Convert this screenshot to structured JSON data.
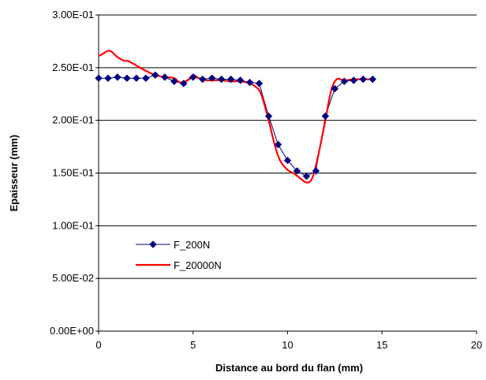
{
  "chart_data": {
    "type": "line",
    "title": "",
    "xlabel": "Distance au bord du flan (mm)",
    "ylabel": "Epaisseur (mm)",
    "xlim": [
      0,
      20
    ],
    "ylim": [
      0,
      0.3
    ],
    "x_ticks": [
      0,
      5,
      10,
      15,
      20
    ],
    "x_tick_labels": [
      "0",
      "5",
      "10",
      "15",
      "20"
    ],
    "y_ticks": [
      0,
      0.05,
      0.1,
      0.15,
      0.2,
      0.25,
      0.3
    ],
    "y_tick_labels": [
      "0.00E+00",
      "5.00E-02",
      "1.00E-01",
      "1.50E-01",
      "2.00E-01",
      "2.50E-01",
      "3.00E-01"
    ],
    "grid": "horizontal",
    "legend_position": "left-center",
    "series": [
      {
        "name": "F_200N",
        "color": "#000080",
        "marker": "diamond",
        "x": [
          0,
          0.5,
          1,
          1.5,
          2,
          2.5,
          3,
          3.5,
          4,
          4.5,
          5,
          5.5,
          6,
          6.5,
          7,
          7.5,
          8,
          8.5,
          9,
          9.5,
          10,
          10.5,
          11,
          11.5,
          12,
          12.5,
          13,
          13.5,
          14,
          14.5
        ],
        "y": [
          0.24,
          0.24,
          0.241,
          0.24,
          0.24,
          0.24,
          0.243,
          0.241,
          0.237,
          0.235,
          0.241,
          0.239,
          0.24,
          0.239,
          0.239,
          0.238,
          0.236,
          0.235,
          0.204,
          0.177,
          0.162,
          0.152,
          0.147,
          0.152,
          0.204,
          0.23,
          0.237,
          0.238,
          0.239,
          0.239
        ]
      },
      {
        "name": "F_20000N",
        "color": "#ff0000",
        "marker": "none",
        "x": [
          0,
          0.3,
          0.5,
          0.7,
          1,
          1.3,
          1.6,
          2,
          2.5,
          3,
          3.5,
          4,
          4.3,
          4.7,
          5,
          5.3,
          5.7,
          6,
          6.5,
          7,
          7.5,
          8,
          8.3,
          8.6,
          9,
          9.3,
          9.6,
          10,
          10.3,
          10.6,
          11,
          11.3,
          11.6,
          12,
          12.3,
          12.6,
          13,
          13.5,
          14,
          14.5
        ],
        "y": [
          0.261,
          0.264,
          0.266,
          0.265,
          0.26,
          0.257,
          0.256,
          0.252,
          0.247,
          0.243,
          0.241,
          0.24,
          0.236,
          0.238,
          0.243,
          0.24,
          0.238,
          0.238,
          0.238,
          0.237,
          0.237,
          0.235,
          0.232,
          0.225,
          0.2,
          0.178,
          0.162,
          0.153,
          0.15,
          0.146,
          0.141,
          0.145,
          0.165,
          0.2,
          0.228,
          0.239,
          0.238,
          0.239,
          0.239,
          0.239
        ]
      }
    ]
  }
}
